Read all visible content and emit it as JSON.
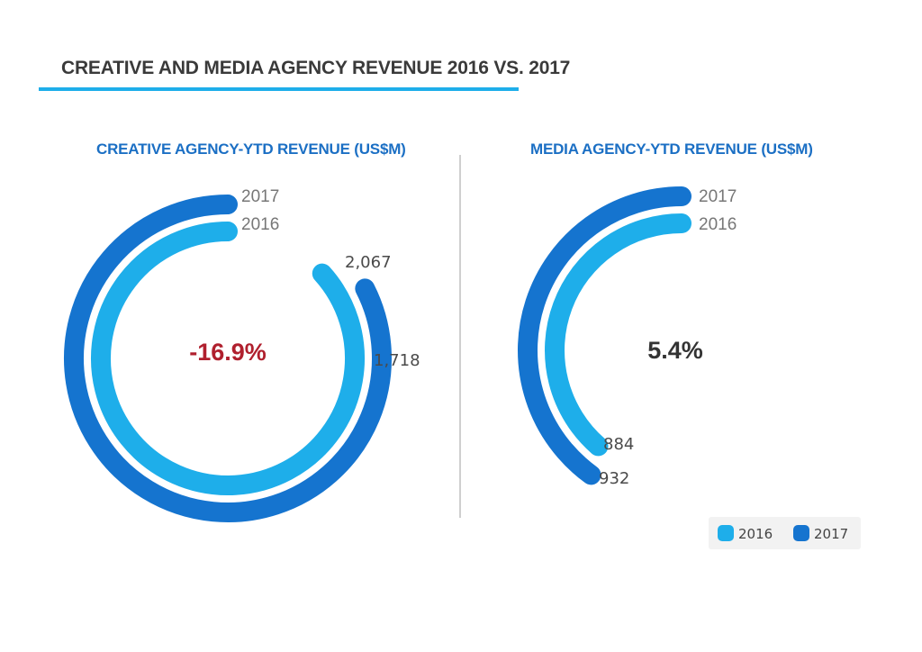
{
  "title": "CREATIVE AND MEDIA AGENCY REVENUE 2016 VS. 2017",
  "colors": {
    "series_2016": "#1eaeea",
    "series_2017": "#1574cf",
    "title_underline": "#1eaeea",
    "subtitle": "#1b6fc4",
    "negative": "#b0202e",
    "positive": "#333333",
    "legend_bg": "#f2f2f2"
  },
  "legend": {
    "items": [
      {
        "label": "2016",
        "color": "#1eaeea"
      },
      {
        "label": "2017",
        "color": "#1574cf"
      }
    ]
  },
  "chart_data": [
    {
      "type": "radial-bar",
      "title": "CREATIVE AGENCY-YTD REVENUE (US$M)",
      "unit": "US$M",
      "series": [
        {
          "name": "2017",
          "value": 1718,
          "value_label": "1,718",
          "arc_sweep_deg": 297
        },
        {
          "name": "2016",
          "value": 2067,
          "value_label": "2,067",
          "arc_sweep_deg": 312
        }
      ],
      "change_label": "-16.9%"
    },
    {
      "type": "radial-bar",
      "title": "MEDIA AGENCY-YTD REVENUE (US$M)",
      "unit": "US$M",
      "series": [
        {
          "name": "2017",
          "value": 932,
          "value_label": "932",
          "arc_sweep_deg": 144
        },
        {
          "name": "2016",
          "value": 884,
          "value_label": "884",
          "arc_sweep_deg": 139
        }
      ],
      "change_label": "5.4%"
    }
  ]
}
